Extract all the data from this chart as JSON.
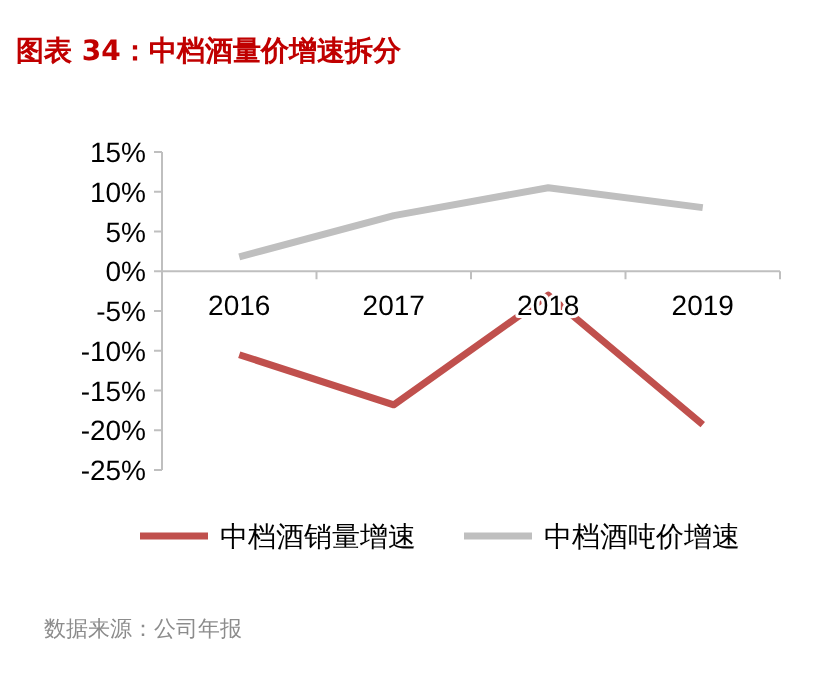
{
  "chart_data": {
    "type": "line",
    "title": "图表 34：中档酒量价增速拆分",
    "categories": [
      "2016",
      "2017",
      "2018",
      "2019"
    ],
    "series": [
      {
        "name": "中档酒销量增速",
        "color": "#c0504d",
        "values": [
          -10.5,
          -16.8,
          -3,
          -19.3
        ]
      },
      {
        "name": "中档酒吨价增速",
        "color": "#bfbfbf",
        "values": [
          1.8,
          7,
          10.5,
          8
        ]
      }
    ],
    "ylim": [
      -25,
      15
    ],
    "yticks": [
      {
        "value": -25,
        "label": "-25%"
      },
      {
        "value": -20,
        "label": "-20%"
      },
      {
        "value": -15,
        "label": "-15%"
      },
      {
        "value": -10,
        "label": "-10%"
      },
      {
        "value": -5,
        "label": "-5%"
      },
      {
        "value": 0,
        "label": "0%"
      },
      {
        "value": 5,
        "label": "5%"
      },
      {
        "value": 10,
        "label": "10%"
      },
      {
        "value": 15,
        "label": "15%"
      }
    ],
    "legend": "bottom",
    "marker": "none",
    "line_style": "solid",
    "annotations": [
      "数据来源：公司年报"
    ]
  }
}
